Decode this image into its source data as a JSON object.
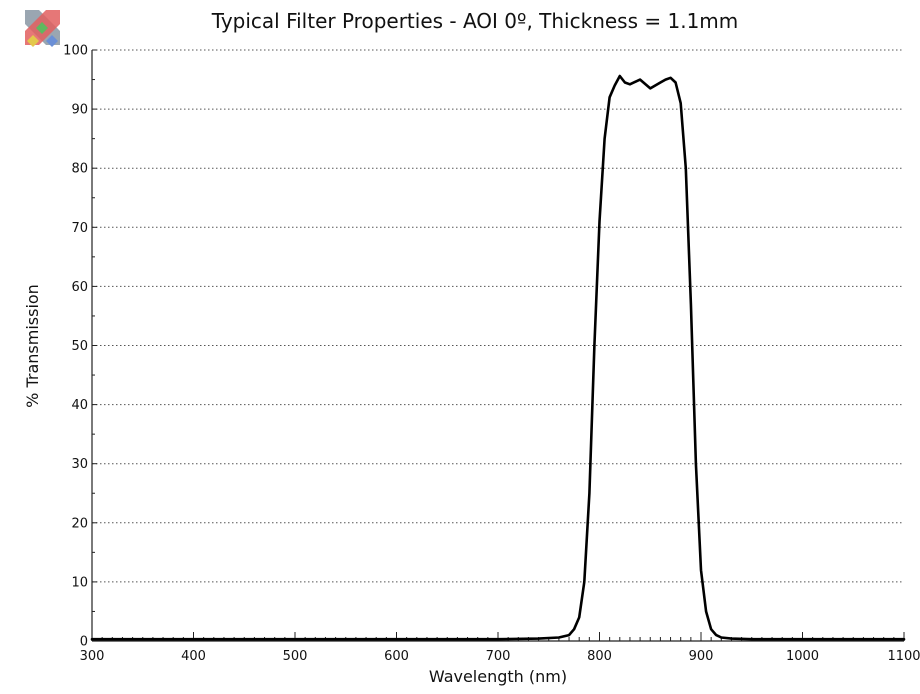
{
  "chart_data": {
    "type": "line",
    "title": "Typical Filter Properties - AOI 0º, Thickness = 1.1mm",
    "xlabel": "Wavelength (nm)",
    "ylabel": "% Transmission",
    "xlim": [
      300,
      1100
    ],
    "ylim": [
      0,
      100
    ],
    "xticks": [
      300,
      400,
      500,
      600,
      700,
      800,
      900,
      1000,
      1100
    ],
    "yticks": [
      0,
      10,
      20,
      30,
      40,
      50,
      60,
      70,
      80,
      90,
      100
    ],
    "grid": "horizontal dotted",
    "legend": "none",
    "series": [
      {
        "x": [
          300,
          400,
          500,
          600,
          700,
          740,
          760,
          770,
          775,
          780,
          785,
          790,
          795,
          800,
          805,
          810,
          815,
          820,
          825,
          830,
          840,
          850,
          860,
          865,
          870,
          875,
          880,
          885,
          890,
          895,
          900,
          905,
          910,
          915,
          920,
          930,
          950,
          1000,
          1050,
          1100
        ],
        "y": [
          0.3,
          0.3,
          0.3,
          0.3,
          0.3,
          0.4,
          0.6,
          1,
          2,
          4,
          10,
          25,
          50,
          71,
          85,
          92,
          94,
          95.6,
          94.5,
          94.2,
          95,
          93.5,
          94.5,
          95,
          95.3,
          94.5,
          91,
          80,
          57,
          30,
          12,
          5,
          2,
          1,
          0.6,
          0.4,
          0.3,
          0.3,
          0.3,
          0.3
        ]
      }
    ]
  },
  "colors": {
    "background": "#ffffff",
    "plot_background": "#ffffff",
    "grid": "#555555",
    "axis": "#222222",
    "series_line": "#000000",
    "logo": [
      "#9aa6b1",
      "#e25f5f",
      "#5fb85f",
      "#e3c84b",
      "#6a8fd6"
    ]
  },
  "icons": {
    "logo": "logo-cross-icon"
  }
}
